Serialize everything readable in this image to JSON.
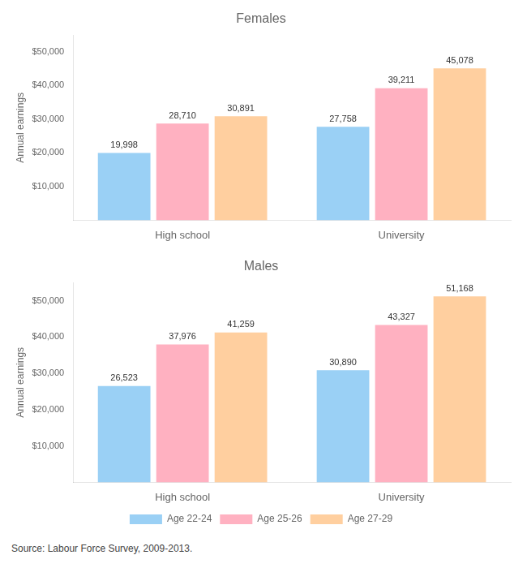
{
  "chart_data": [
    {
      "type": "bar",
      "title": "Females",
      "categories": [
        "High school",
        "University"
      ],
      "ylabel": "Annual earnings",
      "series": [
        {
          "name": "Age 22-24",
          "values": [
            19998,
            27758
          ],
          "value_labels": [
            "19,998",
            "27,758"
          ]
        },
        {
          "name": "Age 25-26",
          "values": [
            28710,
            39211
          ],
          "value_labels": [
            "28,710",
            "39,211"
          ]
        },
        {
          "name": "Age 27-29",
          "values": [
            30891,
            45078
          ],
          "value_labels": [
            "30,891",
            "45,078"
          ]
        }
      ],
      "ylim": [
        0,
        55000
      ],
      "yticks": [
        {
          "value": 10000,
          "label": "$10,000"
        },
        {
          "value": 20000,
          "label": "$20,000"
        },
        {
          "value": 30000,
          "label": "$30,000"
        },
        {
          "value": 40000,
          "label": "$40,000"
        },
        {
          "value": 50000,
          "label": "$50,000"
        }
      ],
      "grid": false,
      "data_labels": true
    },
    {
      "type": "bar",
      "title": "Males",
      "categories": [
        "High school",
        "University"
      ],
      "ylabel": "Annual earnings",
      "series": [
        {
          "name": "Age 22-24",
          "values": [
            26523,
            30890
          ],
          "value_labels": [
            "26,523",
            "30,890"
          ]
        },
        {
          "name": "Age 25-26",
          "values": [
            37976,
            43327
          ],
          "value_labels": [
            "37,976",
            "43,327"
          ]
        },
        {
          "name": "Age 27-29",
          "values": [
            41259,
            51168
          ],
          "value_labels": [
            "41,259",
            "51,168"
          ]
        }
      ],
      "ylim": [
        0,
        55000
      ],
      "yticks": [
        {
          "value": 10000,
          "label": "$10,000"
        },
        {
          "value": 20000,
          "label": "$20,000"
        },
        {
          "value": 30000,
          "label": "$30,000"
        },
        {
          "value": 40000,
          "label": "$40,000"
        },
        {
          "value": 50000,
          "label": "$50,000"
        }
      ],
      "grid": false,
      "data_labels": true,
      "legend": "bottom",
      "annotations": [
        "Source: Labour Force Survey, 2009-2013."
      ]
    }
  ]
}
